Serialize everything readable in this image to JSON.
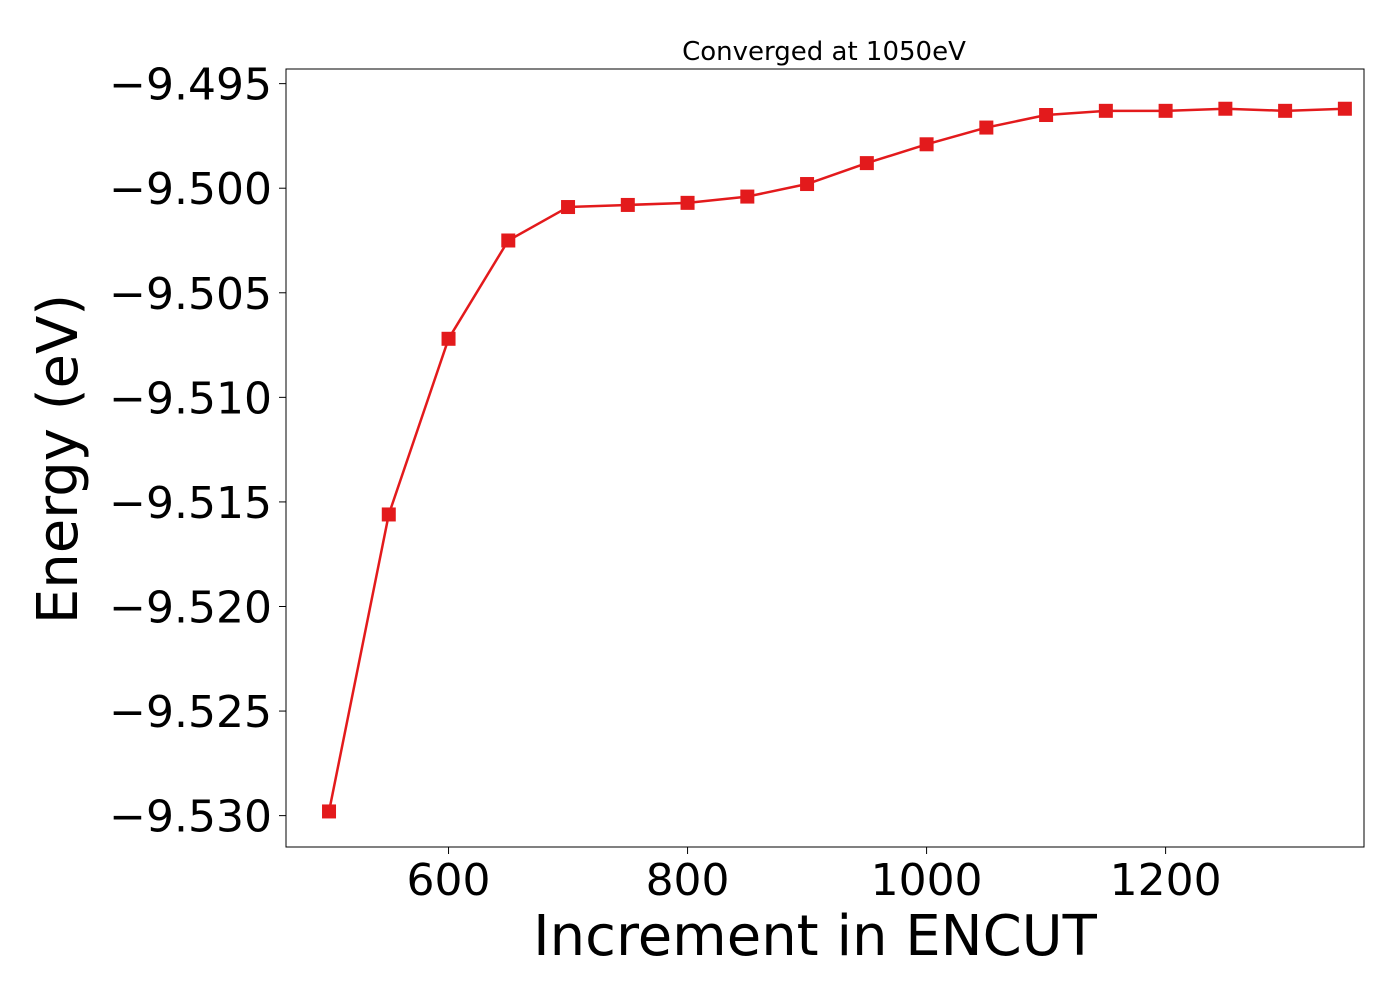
{
  "chart_data": {
    "type": "line",
    "title": "Converged at 1050eV",
    "xlabel": "Increment in ENCUT",
    "ylabel": "Energy (eV)",
    "xlim": [
      464,
      1366
    ],
    "ylim": [
      -9.5315,
      -9.4943
    ],
    "xticks": [
      600,
      800,
      1000,
      1200
    ],
    "xtick_labels": [
      "600",
      "800",
      "1000",
      "1200"
    ],
    "yticks": [
      -9.495,
      -9.5,
      -9.505,
      -9.51,
      -9.515,
      -9.52,
      -9.525,
      -9.53
    ],
    "ytick_labels": [
      "−9.495",
      "−9.500",
      "−9.505",
      "−9.510",
      "−9.515",
      "−9.520",
      "−9.525",
      "−9.530"
    ],
    "grid": false,
    "series": [
      {
        "color": "#e31a1c",
        "marker": "square",
        "x": [
          500,
          550,
          600,
          650,
          700,
          750,
          800,
          850,
          900,
          950,
          1000,
          1050,
          1100,
          1150,
          1200,
          1250,
          1300,
          1350
        ],
        "y": [
          -9.5298,
          -9.5156,
          -9.5072,
          -9.5025,
          -9.5009,
          -9.5008,
          -9.5007,
          -9.5004,
          -9.4998,
          -9.4988,
          -9.4979,
          -9.4971,
          -9.4965,
          -9.4963,
          -9.4963,
          -9.4962,
          -9.4963,
          -9.4962
        ]
      }
    ]
  }
}
